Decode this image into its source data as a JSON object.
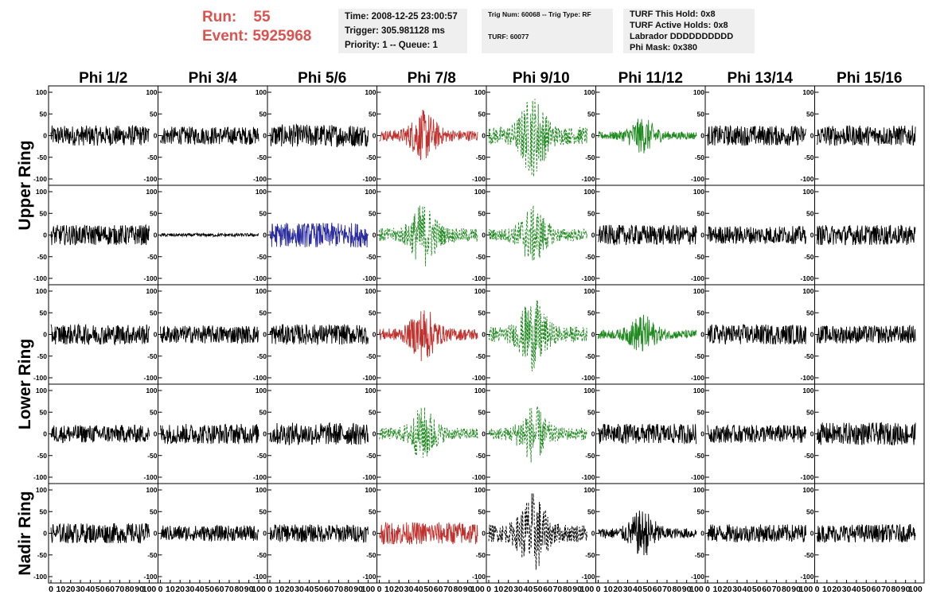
{
  "run_info": {
    "run_label": "Run:",
    "run_value": "55",
    "event_label": "Event:",
    "event_value": "5925968"
  },
  "time_box": {
    "time": "Time: 2008-12-25 23:00:57",
    "trigger": "Trigger: 305.981128 ms",
    "priority": "Priority: 1 -- Queue: 1"
  },
  "trig_box": {
    "trig_line": "Trig Num: 60068 -- Trig Type: RF",
    "turf_line": "TURF: 60077"
  },
  "turf_box": {
    "this_hold": "TURF This Hold: 0x8",
    "active_holds": "TURF Active Holds: 0x8",
    "labrador": "Labrador DDDDDDDDDD",
    "phi_mask": "Phi Mask: 0x380"
  },
  "colors": {
    "run_text": "#d9534f",
    "normal": "#000000",
    "red": "#c0302c",
    "green": "#1f8a1f",
    "blue": "#2a2aa0",
    "green_dashed": "#1f8a1f",
    "black_dashed": "#000000"
  },
  "chart_data": {
    "type": "line",
    "columns": [
      "Phi 1/2",
      "Phi 3/4",
      "Phi 5/6",
      "Phi 7/8",
      "Phi 9/10",
      "Phi 11/12",
      "Phi 13/14",
      "Phi 15/16"
    ],
    "rings": [
      "Upper Ring",
      "Lower Ring",
      "Nadir Ring"
    ],
    "x_range": [
      0,
      100
    ],
    "y_range": [
      -100,
      100
    ],
    "y_ticks": [
      "100",
      "50",
      "0",
      "-50",
      "-100"
    ],
    "x_ticks": [
      "0",
      "10",
      "20",
      "30",
      "40",
      "50",
      "60",
      "70",
      "80",
      "90",
      "100"
    ],
    "panels": [
      [
        {
          "style": "black",
          "amp": 18
        },
        {
          "style": "black",
          "amp": 16
        },
        {
          "style": "black",
          "amp": 20
        },
        {
          "style": "red",
          "amp": 28,
          "burst": 1
        },
        {
          "style": "green_dashed",
          "amp": 45,
          "burst": 1
        },
        {
          "style": "green",
          "amp": 20,
          "burst": 1
        },
        {
          "style": "black",
          "amp": 18
        },
        {
          "style": "black",
          "amp": 18
        }
      ],
      [
        {
          "style": "black",
          "amp": 18
        },
        {
          "style": "black",
          "amp": 3
        },
        {
          "style": "blue",
          "amp": 22
        },
        {
          "style": "green_dashed",
          "amp": 35,
          "burst": 1
        },
        {
          "style": "green_dashed",
          "amp": 32,
          "burst": 1
        },
        {
          "style": "black",
          "amp": 18
        },
        {
          "style": "black",
          "amp": 16
        },
        {
          "style": "black",
          "amp": 18
        }
      ],
      [
        {
          "style": "black",
          "amp": 18
        },
        {
          "style": "black",
          "amp": 16
        },
        {
          "style": "black",
          "amp": 18
        },
        {
          "style": "red",
          "amp": 30,
          "burst": 1
        },
        {
          "style": "green_dashed",
          "amp": 40,
          "burst": 1
        },
        {
          "style": "green",
          "amp": 22,
          "burst": 1
        },
        {
          "style": "black",
          "amp": 18
        },
        {
          "style": "black",
          "amp": 16
        }
      ],
      [
        {
          "style": "black",
          "amp": 16
        },
        {
          "style": "black",
          "amp": 18
        },
        {
          "style": "black",
          "amp": 20
        },
        {
          "style": "green_dashed",
          "amp": 30,
          "burst": 1
        },
        {
          "style": "green_dashed",
          "amp": 32,
          "burst": 1
        },
        {
          "style": "black",
          "amp": 18
        },
        {
          "style": "black",
          "amp": 16
        },
        {
          "style": "black",
          "amp": 20
        }
      ],
      [
        {
          "style": "black",
          "amp": 18
        },
        {
          "style": "black",
          "amp": 14
        },
        {
          "style": "black",
          "amp": 16
        },
        {
          "style": "red",
          "amp": 20
        },
        {
          "style": "black_dashed",
          "amp": 45,
          "burst": 1
        },
        {
          "style": "black",
          "amp": 26,
          "burst": 1
        },
        {
          "style": "black",
          "amp": 16
        },
        {
          "style": "black",
          "amp": 16
        }
      ]
    ]
  }
}
